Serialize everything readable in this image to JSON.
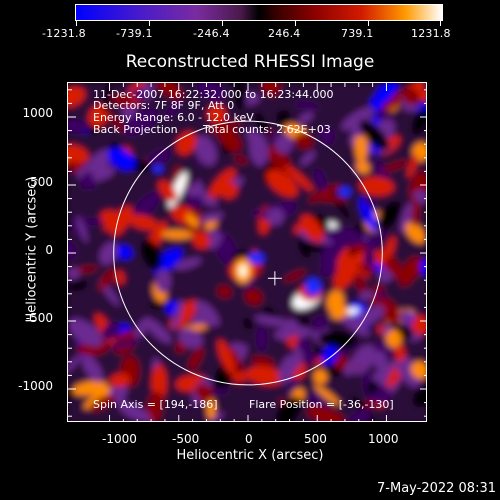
{
  "colorbar": {
    "tick_labels": [
      "-1231.8",
      "-739.1",
      "-246.4",
      "246.4",
      "739.1",
      "1231.8"
    ],
    "colors": [
      "#0000ff",
      "#7a2ba0",
      "#000000",
      "#8a0000",
      "#ff9a00",
      "#ffffff"
    ]
  },
  "title": "Reconstructed RHESSI Image",
  "annotations": {
    "time_range": "11-Dec-2007 16:22:32.000 to 16:23:44.000",
    "detectors": "Detectors: 7F 8F 9F, Att 0",
    "energy": "Energy Range: 6.0 - 12.0 keV",
    "method": "Back Projection",
    "counts": "Total counts: 2.62E+03",
    "spin_axis": "Spin Axis = [194,-186]",
    "flare_position": "Flare Position = [-36,-130]"
  },
  "axes": {
    "xlabel": "Heliocentric X (arcsec)",
    "ylabel": "Heliocentric Y (arcsec)",
    "x_ticks": [
      "-1000",
      "-500",
      "0",
      "500",
      "1000"
    ],
    "y_ticks": [
      "1000",
      "500",
      "0",
      "-500",
      "-1000"
    ],
    "x_range": [
      -1300,
      1300
    ],
    "y_range": [
      -1250,
      1250
    ]
  },
  "footer": {
    "date": "7-May-2022 08:31"
  },
  "image": {
    "solar_limb_radius_arcsec": 970,
    "spin_axis_marker": [
      194,
      -186
    ],
    "bright_source": [
      -36,
      -130
    ],
    "palette": [
      "#0000ff",
      "#3a0060",
      "#6a2a90",
      "#000000",
      "#8a0000",
      "#d81a00",
      "#ff8a00",
      "#ffffff"
    ]
  }
}
